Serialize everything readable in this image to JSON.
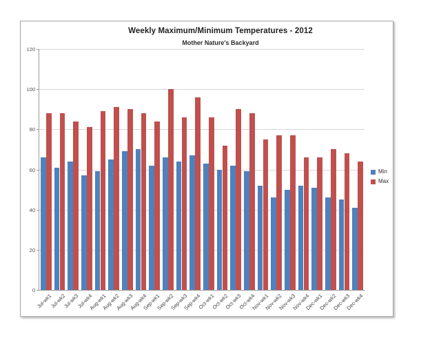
{
  "chart": {
    "title": "Weekly Maximum/Minimum Temperatures - 2012",
    "subtitle": "Mother Nature's Backyard"
  },
  "chart_data": {
    "type": "bar",
    "title": "Weekly Maximum/Minimum Temperatures - 2012",
    "subtitle": "Mother Nature's Backyard",
    "categories": [
      "Jul-wk1",
      "Jul-wk2",
      "Jul-wk3",
      "Jul-wk4",
      "Aug-wk1",
      "Aug-wk2",
      "Aug-wk3",
      "Aug-wk4",
      "Sep-wk1",
      "Sep-wk2",
      "Sep-wk3",
      "Sep-wk4",
      "Oct-wk1",
      "Oct-wk2",
      "Oct-wk3",
      "Oct-wk4",
      "Nov-wk1",
      "Nov-wk2",
      "Nov-wk3",
      "Nov-wk4",
      "Dec-wk1",
      "Dec-wk2",
      "Dec-wk3",
      "Dec-wk4"
    ],
    "series": [
      {
        "name": "Min",
        "color": "#4f81bd",
        "values": [
          66,
          61,
          64,
          57,
          59,
          65,
          69,
          70,
          62,
          66,
          64,
          67,
          63,
          60,
          62,
          59,
          52,
          46,
          50,
          52,
          51,
          46,
          45,
          41
        ]
      },
      {
        "name": "Max",
        "color": "#c0504d",
        "values": [
          88,
          88,
          84,
          81,
          89,
          91,
          90,
          88,
          84,
          100,
          86,
          96,
          86,
          72,
          90,
          88,
          75,
          77,
          77,
          66,
          66,
          70,
          68,
          64
        ]
      }
    ],
    "xlabel": "",
    "ylabel": "",
    "ylim": [
      0,
      120
    ],
    "yticks": [
      0,
      20,
      40,
      60,
      80,
      100,
      120
    ],
    "grid": true,
    "legend_position": "right"
  },
  "colors": {
    "min_series": "#4f81bd",
    "max_series": "#c0504d",
    "gridline": "#d6d6d6",
    "axis": "#9a9a9a",
    "frame_border": "#a6a6a6",
    "background": "#ffffff"
  }
}
